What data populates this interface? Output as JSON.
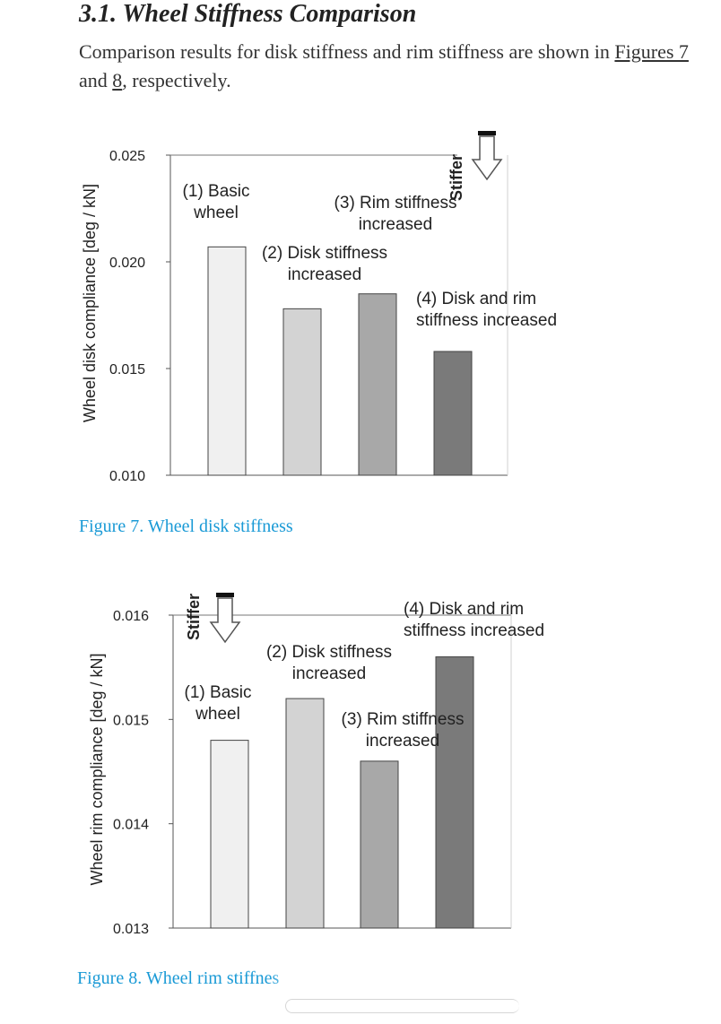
{
  "section": {
    "heading": "3.1. Wheel Stiffness Comparison",
    "intro_prefix": "Comparison results for disk stiffness and rim stiffness are shown in ",
    "intro_ref1": "Figures 7",
    "intro_mid": " and ",
    "intro_ref2": "8",
    "intro_suffix": ", respectively."
  },
  "colors": {
    "bar_fills": [
      "#f0f0f0",
      "#d3d3d3",
      "#a8a8a8",
      "#7a7a7a"
    ],
    "caption": "#1a9ad6"
  },
  "icons": [
    "down-arrow-icon"
  ],
  "chart_data": [
    {
      "type": "bar",
      "title": "",
      "caption": "Figure 7. Wheel disk stiffness",
      "ylabel": "Wheel disk compliance [deg / kN]",
      "ylim": [
        0.01,
        0.025
      ],
      "yticks": [
        "0.010",
        "0.015",
        "0.020",
        "0.025"
      ],
      "stiffer_label": "Stiffer",
      "grid": false,
      "categories": [
        "(1) Basic wheel",
        "(2) Disk stiffness increased",
        "(3) Rim stiffness increased",
        "(4) Disk and rim stiffness increased"
      ],
      "annotations": [
        [
          "(1) Basic",
          "wheel"
        ],
        [
          "(2) Disk stiffness",
          "increased"
        ],
        [
          "(3) Rim stiffness",
          "increased"
        ],
        [
          "(4) Disk and rim",
          "stiffness increased"
        ]
      ],
      "values": [
        0.0207,
        0.0178,
        0.0185,
        0.0158
      ]
    },
    {
      "type": "bar",
      "title": "",
      "caption": "Figure 8. Wheel rim stiffnes",
      "ylabel": "Wheel rim compliance [deg / kN]",
      "ylim": [
        0.013,
        0.016
      ],
      "yticks": [
        "0.013",
        "0.014",
        "0.015",
        "0.016"
      ],
      "stiffer_label": "Stiffer",
      "grid": false,
      "categories": [
        "(1) Basic wheel",
        "(2) Disk stiffness increased",
        "(3) Rim stiffness increased",
        "(4) Disk and rim stiffness increased"
      ],
      "annotations": [
        [
          "(1) Basic",
          "wheel"
        ],
        [
          "(2) Disk stiffness",
          "increased"
        ],
        [
          "(3) Rim stiffness",
          "increased"
        ],
        [
          "(4) Disk and rim",
          "stiffness increased"
        ]
      ],
      "values": [
        0.0148,
        0.0152,
        0.0146,
        0.0156
      ]
    }
  ]
}
